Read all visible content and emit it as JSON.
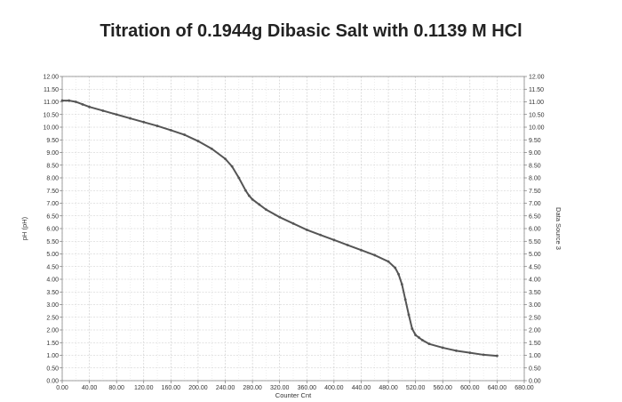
{
  "chart_data": {
    "type": "line",
    "title": "Titration of 0.1944g  Dibasic Salt with 0.1139 M HCl",
    "xlabel": "Counter Cnt",
    "ylabel": "pH (pH)",
    "y2label": "Data Source 3",
    "xlim": [
      0,
      680
    ],
    "ylim": [
      0,
      12
    ],
    "grid": true,
    "legend": "none",
    "x_ticks": [
      "0.00",
      "40.00",
      "80.00",
      "120.00",
      "160.00",
      "200.00",
      "240.00",
      "280.00",
      "320.00",
      "360.00",
      "400.00",
      "440.00",
      "480.00",
      "520.00",
      "560.00",
      "600.00",
      "640.00",
      "680.00"
    ],
    "y_ticks_left": [
      "0.00",
      "0.50",
      "1.00",
      "1.50",
      "2.00",
      "2.50",
      "3.00",
      "3.50",
      "4.00",
      "4.50",
      "5.00",
      "5.50",
      "6.00",
      "6.50",
      "7.00",
      "7.50",
      "8.00",
      "8.50",
      "9.00",
      "9.50",
      "10.00",
      "10.50",
      "11.00",
      "11.50",
      "12.00"
    ],
    "y_ticks_right": [
      "0.00",
      "0.50",
      "1.00",
      "1.50",
      "2.00",
      "2.50",
      "3.00",
      "3.50",
      "4.00",
      "4.50",
      "5.00",
      "5.50",
      "6.00",
      "6.50",
      "7.00",
      "7.50",
      "8.00",
      "8.50",
      "9.00",
      "9.50",
      "10.00",
      "10.50",
      "11.00",
      "11.50",
      "12.00"
    ],
    "series": [
      {
        "color": "#555555",
        "x": [
          0,
          10,
          20,
          30,
          40,
          60,
          80,
          100,
          120,
          140,
          160,
          180,
          200,
          220,
          240,
          250,
          260,
          270,
          275,
          280,
          290,
          300,
          320,
          340,
          360,
          380,
          400,
          420,
          440,
          460,
          480,
          490,
          495,
          500,
          505,
          510,
          515,
          520,
          525,
          530,
          540,
          560,
          580,
          600,
          620,
          640
        ],
        "y": [
          11.05,
          11.05,
          11.0,
          10.9,
          10.8,
          10.65,
          10.5,
          10.35,
          10.2,
          10.05,
          9.88,
          9.7,
          9.45,
          9.15,
          8.75,
          8.45,
          8.0,
          7.5,
          7.3,
          7.15,
          6.95,
          6.75,
          6.45,
          6.2,
          5.95,
          5.75,
          5.55,
          5.35,
          5.15,
          4.95,
          4.7,
          4.45,
          4.2,
          3.8,
          3.2,
          2.6,
          2.05,
          1.8,
          1.7,
          1.6,
          1.45,
          1.3,
          1.18,
          1.1,
          1.02,
          0.98
        ]
      }
    ]
  }
}
